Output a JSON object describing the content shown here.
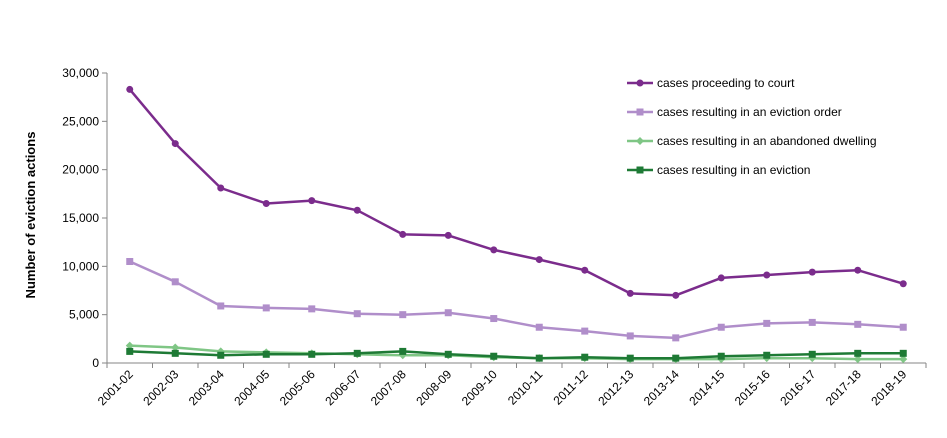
{
  "chart_data": {
    "type": "line",
    "title": "",
    "xlabel": "",
    "ylabel": "Number of eviction actions",
    "ylim": [
      0,
      30000
    ],
    "yticks": [
      "0",
      "5,000",
      "10,000",
      "15,000",
      "20,000",
      "25,000",
      "30,000"
    ],
    "ytick_values": [
      0,
      5000,
      10000,
      15000,
      20000,
      25000,
      30000
    ],
    "grid": false,
    "legend_position": "top-right",
    "categories": [
      "2001-02",
      "2002-03",
      "2003-04",
      "2004-05",
      "2005-06",
      "2006-07",
      "2007-08",
      "2008-09",
      "2009-10",
      "2010-11",
      "2011-12",
      "2012-13",
      "2013-14",
      "2014-15",
      "2015-16",
      "2016-17",
      "2017-18",
      "2018-19"
    ],
    "series": [
      {
        "name": "cases proceeding to court",
        "color": "#7B2C8C",
        "marker": "circle",
        "values": [
          28300,
          22700,
          18100,
          16500,
          16800,
          15800,
          13300,
          13200,
          11700,
          10700,
          9600,
          7200,
          7000,
          8800,
          9100,
          9400,
          9600,
          8200
        ]
      },
      {
        "name": "cases resulting in an eviction order",
        "color": "#B08ECA",
        "marker": "square",
        "values": [
          10500,
          8400,
          5900,
          5700,
          5600,
          5100,
          5000,
          5200,
          4600,
          3700,
          3300,
          2800,
          2600,
          3700,
          4100,
          4200,
          4000,
          3700
        ]
      },
      {
        "name": "cases resulting in an abandoned dwelling",
        "color": "#7FC685",
        "marker": "diamond",
        "values": [
          1800,
          1600,
          1200,
          1100,
          1000,
          900,
          800,
          800,
          600,
          500,
          500,
          400,
          400,
          400,
          500,
          500,
          400,
          400
        ]
      },
      {
        "name": "cases resulting in an eviction",
        "color": "#1E7A35",
        "marker": "square",
        "values": [
          1200,
          1000,
          800,
          900,
          900,
          1000,
          1200,
          900,
          700,
          500,
          600,
          500,
          500,
          700,
          800,
          900,
          1000,
          1000
        ]
      }
    ]
  }
}
